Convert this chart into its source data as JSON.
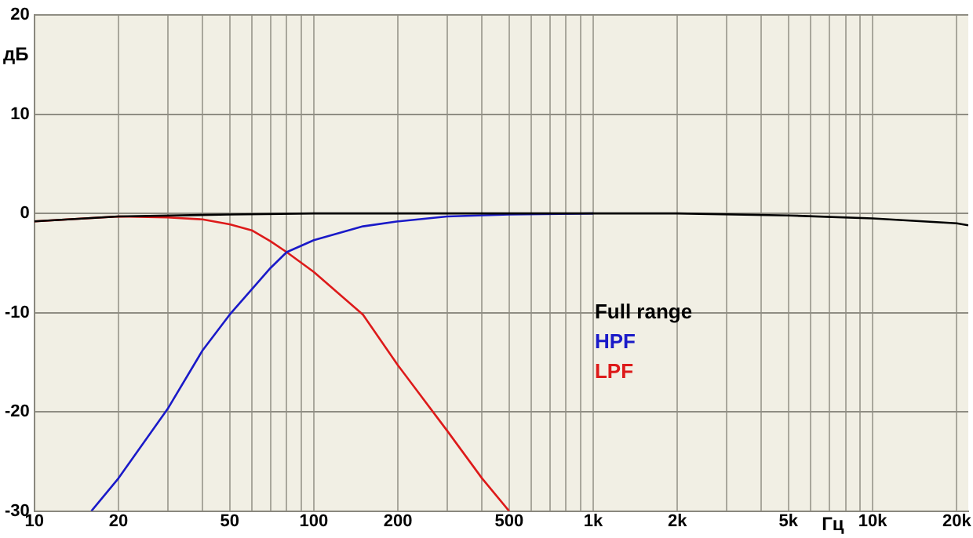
{
  "chart_data": {
    "type": "line",
    "xlabel": "Гц",
    "ylabel": "дБ",
    "log": "x",
    "grid": true,
    "legend": "center",
    "marker": "none",
    "line_style": "solid",
    "xlim": [
      10,
      22000
    ],
    "ylim": [
      -30,
      20
    ],
    "xticks": [
      {
        "value": 10,
        "label": "10"
      },
      {
        "value": 20,
        "label": "20"
      },
      {
        "value": 30,
        "label": null
      },
      {
        "value": 40,
        "label": null
      },
      {
        "value": 50,
        "label": "50"
      },
      {
        "value": 60,
        "label": null
      },
      {
        "value": 70,
        "label": null
      },
      {
        "value": 80,
        "label": null
      },
      {
        "value": 90,
        "label": null
      },
      {
        "value": 100,
        "label": "100"
      },
      {
        "value": 200,
        "label": "200"
      },
      {
        "value": 300,
        "label": null
      },
      {
        "value": 400,
        "label": null
      },
      {
        "value": 500,
        "label": "500"
      },
      {
        "value": 600,
        "label": null
      },
      {
        "value": 700,
        "label": null
      },
      {
        "value": 800,
        "label": null
      },
      {
        "value": 900,
        "label": null
      },
      {
        "value": 1000,
        "label": "1k"
      },
      {
        "value": 2000,
        "label": "2k"
      },
      {
        "value": 3000,
        "label": null
      },
      {
        "value": 4000,
        "label": null
      },
      {
        "value": 5000,
        "label": "5k"
      },
      {
        "value": 6000,
        "label": null
      },
      {
        "value": 7000,
        "label": null
      },
      {
        "value": 8000,
        "label": null
      },
      {
        "value": 9000,
        "label": null
      },
      {
        "value": 10000,
        "label": "10k"
      },
      {
        "value": 20000,
        "label": "20k"
      }
    ],
    "yticks": [
      -30,
      -20,
      -10,
      0,
      10,
      20
    ],
    "series": [
      {
        "name": "Full range",
        "color": "#000000",
        "x": [
          10,
          20,
          50,
          100,
          500,
          1000,
          2000,
          5000,
          10000,
          20000,
          22000
        ],
        "values": [
          -0.8,
          -0.3,
          -0.1,
          0,
          0,
          0,
          0,
          -0.2,
          -0.5,
          -1,
          -1.2
        ]
      },
      {
        "name": "HPF",
        "color": "#1a1ac8",
        "x": [
          16,
          20,
          30,
          40,
          50,
          70,
          80,
          100,
          150,
          200,
          300,
          500,
          1000
        ],
        "values": [
          -30,
          -26.7,
          -19.7,
          -13.8,
          -10.2,
          -5.5,
          -3.9,
          -2.7,
          -1.3,
          -0.8,
          -0.3,
          -0.1,
          0
        ]
      },
      {
        "name": "LPF",
        "color": "#dd1a1a",
        "x": [
          10,
          20,
          30,
          40,
          50,
          60,
          70,
          80,
          100,
          150,
          200,
          300,
          400,
          500
        ],
        "values": [
          -0.8,
          -0.3,
          -0.4,
          -0.6,
          -1.1,
          -1.7,
          -2.8,
          -3.9,
          -5.9,
          -10.2,
          -15.3,
          -21.9,
          -26.7,
          -30
        ]
      }
    ]
  }
}
